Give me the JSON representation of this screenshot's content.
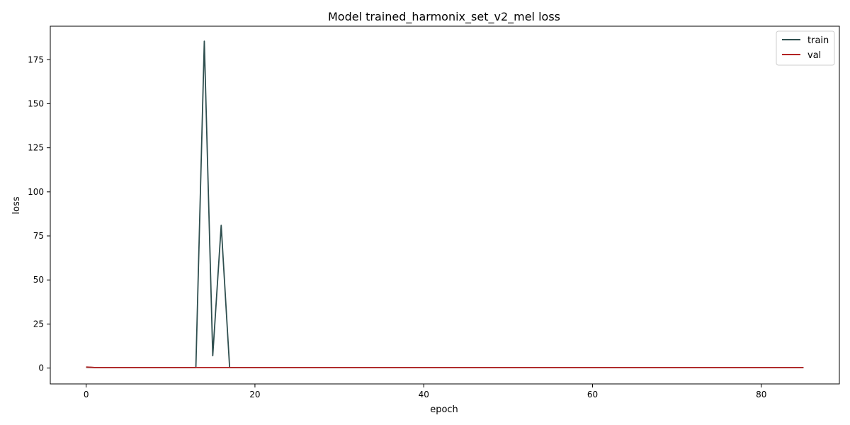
{
  "chart_data": {
    "type": "line",
    "title": "Model trained_harmonix_set_v2_mel loss",
    "xlabel": "epoch",
    "ylabel": "loss",
    "xlim": [
      -4.25,
      89.25
    ],
    "ylim": [
      -9.0,
      194.0
    ],
    "xticks": [
      0,
      20,
      40,
      60,
      80
    ],
    "yticks": [
      0,
      25,
      50,
      75,
      100,
      125,
      150,
      175
    ],
    "grid": false,
    "legend": "top-right",
    "series": [
      {
        "name": "train",
        "color": "#2f4f4f",
        "x": [
          0,
          1,
          2,
          3,
          4,
          5,
          6,
          7,
          8,
          9,
          10,
          11,
          12,
          13,
          14,
          15,
          16,
          17,
          18,
          19,
          20,
          21,
          22,
          23,
          24,
          25,
          26,
          27,
          28,
          29,
          30,
          31,
          32,
          33,
          34,
          35,
          36,
          37,
          38,
          39,
          40,
          41,
          42,
          43,
          44,
          45,
          46,
          47,
          48,
          49,
          50,
          51,
          52,
          53,
          54,
          55,
          56,
          57,
          58,
          59,
          60,
          61,
          62,
          63,
          64,
          65,
          66,
          67,
          68,
          69,
          70,
          71,
          72,
          73,
          74,
          75,
          76,
          77,
          78,
          79,
          80,
          81,
          82,
          83,
          84,
          85
        ],
        "y": [
          0.4,
          0.3,
          0.3,
          0.3,
          0.3,
          0.3,
          0.3,
          0.3,
          0.3,
          0.3,
          0.3,
          0.3,
          0.3,
          0.3,
          185.5,
          7.0,
          81.0,
          0.3,
          0.3,
          0.3,
          0.3,
          0.3,
          0.3,
          0.3,
          0.3,
          0.3,
          0.3,
          0.3,
          0.3,
          0.3,
          0.3,
          0.3,
          0.3,
          0.3,
          0.3,
          0.3,
          0.3,
          0.3,
          0.3,
          0.3,
          0.3,
          0.3,
          0.3,
          0.3,
          0.3,
          0.3,
          0.3,
          0.3,
          0.3,
          0.3,
          0.3,
          0.3,
          0.3,
          0.3,
          0.3,
          0.3,
          0.3,
          0.3,
          0.3,
          0.3,
          0.3,
          0.3,
          0.3,
          0.3,
          0.3,
          0.3,
          0.3,
          0.3,
          0.3,
          0.3,
          0.3,
          0.3,
          0.3,
          0.3,
          0.3,
          0.3,
          0.3,
          0.3,
          0.3,
          0.3,
          0.3,
          0.3,
          0.3,
          0.3,
          0.3,
          0.3
        ]
      },
      {
        "name": "val",
        "color": "#b22222",
        "x": [
          0,
          1,
          2,
          3,
          4,
          5,
          6,
          7,
          8,
          9,
          10,
          11,
          12,
          13,
          14,
          15,
          16,
          17,
          18,
          19,
          20,
          21,
          22,
          23,
          24,
          25,
          26,
          27,
          28,
          29,
          30,
          31,
          32,
          33,
          34,
          35,
          36,
          37,
          38,
          39,
          40,
          41,
          42,
          43,
          44,
          45,
          46,
          47,
          48,
          49,
          50,
          51,
          52,
          53,
          54,
          55,
          56,
          57,
          58,
          59,
          60,
          61,
          62,
          63,
          64,
          65,
          66,
          67,
          68,
          69,
          70,
          71,
          72,
          73,
          74,
          75,
          76,
          77,
          78,
          79,
          80,
          81,
          82,
          83,
          84,
          85
        ],
        "y": [
          0.6,
          0.3,
          0.3,
          0.3,
          0.3,
          0.3,
          0.3,
          0.3,
          0.3,
          0.3,
          0.3,
          0.3,
          0.3,
          0.3,
          0.3,
          0.3,
          0.3,
          0.3,
          0.3,
          0.3,
          0.3,
          0.3,
          0.3,
          0.3,
          0.3,
          0.3,
          0.3,
          0.3,
          0.3,
          0.3,
          0.3,
          0.3,
          0.3,
          0.3,
          0.3,
          0.3,
          0.3,
          0.3,
          0.3,
          0.3,
          0.3,
          0.3,
          0.3,
          0.3,
          0.3,
          0.3,
          0.3,
          0.3,
          0.3,
          0.3,
          0.3,
          0.3,
          0.3,
          0.3,
          0.3,
          0.3,
          0.3,
          0.3,
          0.3,
          0.3,
          0.3,
          0.3,
          0.3,
          0.3,
          0.3,
          0.3,
          0.3,
          0.3,
          0.3,
          0.3,
          0.3,
          0.3,
          0.3,
          0.3,
          0.3,
          0.3,
          0.3,
          0.3,
          0.3,
          0.3,
          0.3,
          0.3,
          0.3,
          0.3,
          0.3,
          0.3
        ]
      }
    ]
  }
}
